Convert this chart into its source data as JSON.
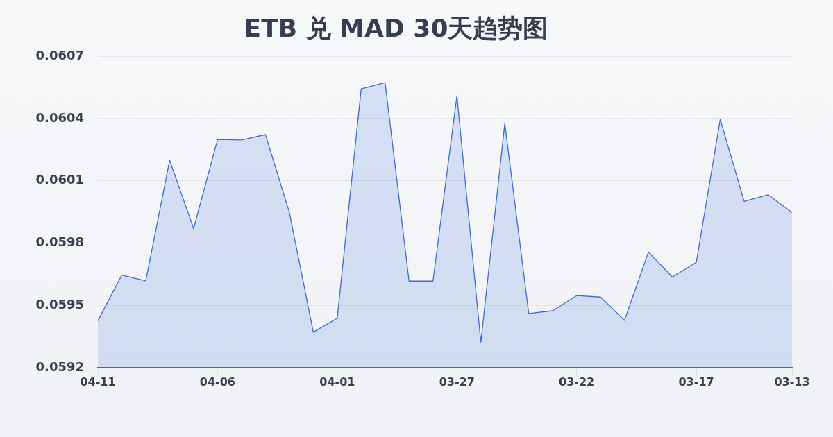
{
  "chart_data": {
    "type": "area",
    "title": "ETB 兑 MAD 30天趋势图",
    "categories": [
      "04-11",
      null,
      null,
      null,
      null,
      "04-06",
      null,
      null,
      null,
      null,
      "04-01",
      null,
      null,
      null,
      null,
      "03-27",
      null,
      null,
      null,
      null,
      "03-22",
      null,
      null,
      null,
      null,
      "03-17",
      null,
      null,
      null,
      "03-13"
    ],
    "values": [
      0.059426,
      0.059646,
      0.059618,
      0.060199,
      0.05987,
      0.060299,
      0.060297,
      0.060323,
      0.059948,
      0.059371,
      0.059438,
      0.060543,
      0.060573,
      0.059617,
      0.059617,
      0.06051,
      0.059323,
      0.060377,
      0.059461,
      0.059474,
      0.059547,
      0.05954,
      0.059428,
      0.059757,
      0.059637,
      0.059707,
      0.060396,
      0.060001,
      0.060033,
      0.059948
    ],
    "color": "#3a6bd4",
    "ylim": [
      0.0592,
      0.0607
    ],
    "yticks": [
      0.0592,
      0.0595,
      0.0598,
      0.0601,
      0.0604,
      0.0607
    ],
    "grid": "y"
  }
}
